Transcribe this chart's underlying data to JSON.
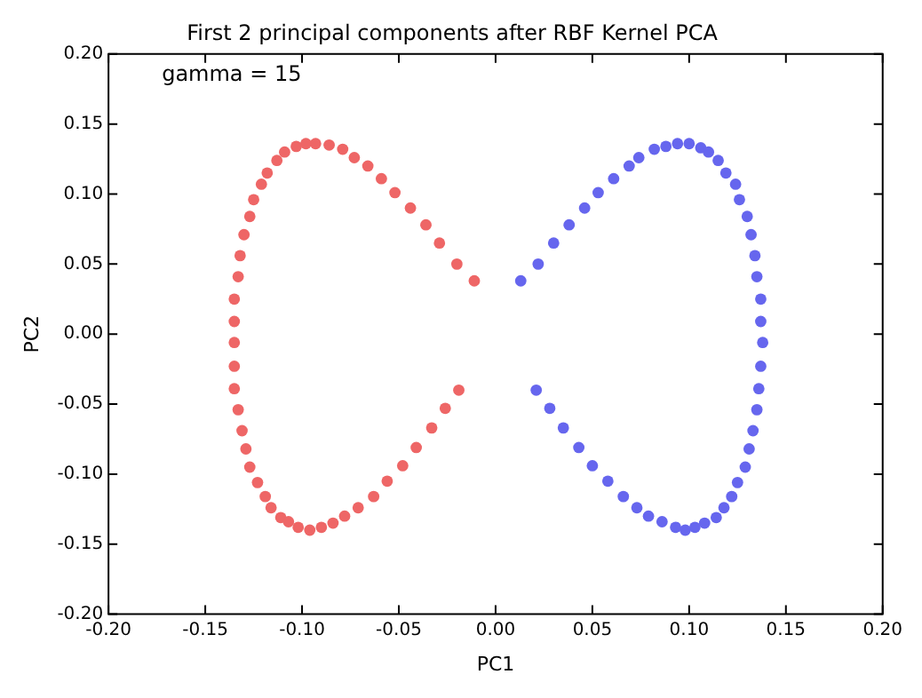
{
  "chart_data": {
    "type": "scatter",
    "title": "First 2 principal components after RBF Kernel PCA",
    "xlabel": "PC1",
    "ylabel": "PC2",
    "annotations": [
      "gamma = 15"
    ],
    "marker": "circle",
    "grid": false,
    "legend": false,
    "xlim": [
      -0.2,
      0.2
    ],
    "ylim": [
      -0.2,
      0.2
    ],
    "xticks": [
      {
        "value": -0.2,
        "label": "-0.20"
      },
      {
        "value": -0.15,
        "label": "-0.15"
      },
      {
        "value": -0.1,
        "label": "-0.10"
      },
      {
        "value": -0.05,
        "label": "-0.05"
      },
      {
        "value": 0,
        "label": "0.00"
      },
      {
        "value": 0.05,
        "label": "0.05"
      },
      {
        "value": 0.1,
        "label": "0.10"
      },
      {
        "value": 0.15,
        "label": "0.15"
      },
      {
        "value": 0.2,
        "label": "0.20"
      }
    ],
    "yticks": [
      {
        "value": -0.2,
        "label": "-0.20"
      },
      {
        "value": -0.15,
        "label": "-0.15"
      },
      {
        "value": -0.1,
        "label": "-0.10"
      },
      {
        "value": -0.05,
        "label": "-0.05"
      },
      {
        "value": 0,
        "label": "0.00"
      },
      {
        "value": 0.05,
        "label": "0.05"
      },
      {
        "value": 0.1,
        "label": "0.10"
      },
      {
        "value": 0.15,
        "label": "0.15"
      },
      {
        "value": 0.2,
        "label": "0.20"
      }
    ],
    "series": [
      {
        "color": "#ee6666",
        "x": [
          -0.011,
          -0.02,
          -0.029,
          -0.036,
          -0.044,
          -0.052,
          -0.059,
          -0.066,
          -0.073,
          -0.079,
          -0.086,
          -0.093,
          -0.098,
          -0.103,
          -0.109,
          -0.113,
          -0.118,
          -0.121,
          -0.125,
          -0.127,
          -0.13,
          -0.132,
          -0.133,
          -0.135,
          -0.135,
          -0.135,
          -0.135,
          -0.135,
          -0.133,
          -0.131,
          -0.129,
          -0.127,
          -0.123,
          -0.119,
          -0.116,
          -0.111,
          -0.107,
          -0.102,
          -0.096,
          -0.09,
          -0.084,
          -0.078,
          -0.071,
          -0.063,
          -0.056,
          -0.048,
          -0.041,
          -0.033,
          -0.026,
          -0.019
        ],
        "values": [
          0.038,
          0.05,
          0.065,
          0.078,
          0.09,
          0.101,
          0.111,
          0.12,
          0.126,
          0.132,
          0.135,
          0.136,
          0.136,
          0.134,
          0.13,
          0.124,
          0.115,
          0.107,
          0.096,
          0.084,
          0.071,
          0.056,
          0.041,
          0.025,
          0.009,
          -0.006,
          -0.023,
          -0.039,
          -0.054,
          -0.069,
          -0.082,
          -0.095,
          -0.106,
          -0.116,
          -0.124,
          -0.131,
          -0.134,
          -0.138,
          -0.14,
          -0.138,
          -0.135,
          -0.13,
          -0.124,
          -0.116,
          -0.105,
          -0.094,
          -0.081,
          -0.067,
          -0.053,
          -0.04
        ]
      },
      {
        "color": "#6666ee",
        "x": [
          0.013,
          0.022,
          0.03,
          0.038,
          0.046,
          0.053,
          0.061,
          0.069,
          0.074,
          0.082,
          0.088,
          0.094,
          0.1,
          0.106,
          0.11,
          0.115,
          0.119,
          0.124,
          0.126,
          0.13,
          0.132,
          0.134,
          0.135,
          0.137,
          0.137,
          0.138,
          0.137,
          0.136,
          0.135,
          0.133,
          0.131,
          0.129,
          0.125,
          0.122,
          0.118,
          0.114,
          0.108,
          0.103,
          0.098,
          0.093,
          0.086,
          0.079,
          0.073,
          0.066,
          0.058,
          0.05,
          0.043,
          0.035,
          0.028,
          0.021
        ],
        "values": [
          0.038,
          0.05,
          0.065,
          0.078,
          0.09,
          0.101,
          0.111,
          0.12,
          0.126,
          0.132,
          0.134,
          0.136,
          0.136,
          0.133,
          0.13,
          0.124,
          0.115,
          0.107,
          0.096,
          0.084,
          0.071,
          0.056,
          0.041,
          0.025,
          0.009,
          -0.006,
          -0.023,
          -0.039,
          -0.054,
          -0.069,
          -0.082,
          -0.095,
          -0.106,
          -0.116,
          -0.124,
          -0.131,
          -0.135,
          -0.138,
          -0.14,
          -0.138,
          -0.134,
          -0.13,
          -0.124,
          -0.116,
          -0.105,
          -0.094,
          -0.081,
          -0.067,
          -0.053,
          -0.04
        ]
      }
    ]
  }
}
